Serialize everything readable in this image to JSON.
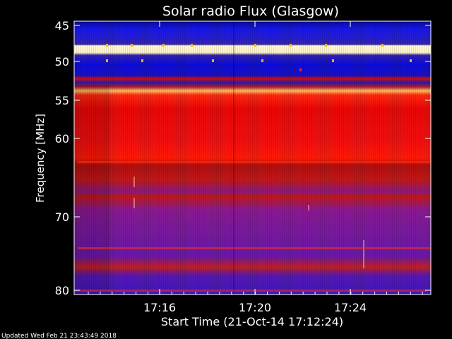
{
  "chart_data": {
    "type": "heatmap",
    "title": "Solar radio Flux (Glasgow)",
    "xlabel": "Start Time (21-Oct-14 17:12:24)",
    "ylabel": "Frequency [MHz]",
    "x_ticks": [
      "17:16",
      "17:20",
      "17:24"
    ],
    "y_ticks": [
      "45",
      "50",
      "55",
      "60",
      "70",
      "80"
    ],
    "ylim": [
      45,
      80
    ],
    "x_range": [
      "17:12:24",
      "17:27:36"
    ],
    "y_scale": "nonlinear (instrument channel spacing)",
    "bands": [
      {
        "from": 45.0,
        "to": 46.5,
        "level": "low"
      },
      {
        "from": 46.5,
        "to": 48.5,
        "level": "low-medium"
      },
      {
        "from": 48.5,
        "to": 49.0,
        "level": "saturated"
      },
      {
        "from": 49.0,
        "to": 52.5,
        "level": "low-medium"
      },
      {
        "from": 52.5,
        "to": 53.0,
        "level": "saturated"
      },
      {
        "from": 53.0,
        "to": 59.5,
        "level": "high"
      },
      {
        "from": 59.5,
        "to": 62.0,
        "level": "medium-high"
      },
      {
        "from": 62.0,
        "to": 70.0,
        "level": "medium"
      },
      {
        "from": 70.0,
        "to": 80.0,
        "level": "low-medium"
      }
    ],
    "colors": {
      "low": "#1a1ad0",
      "medium": "#7a1aa8",
      "high": "#ee0a0a",
      "saturated": "#fff2c0"
    }
  },
  "footer": {
    "updated": "Updated Wed Feb 21 23:43:49 2018"
  }
}
